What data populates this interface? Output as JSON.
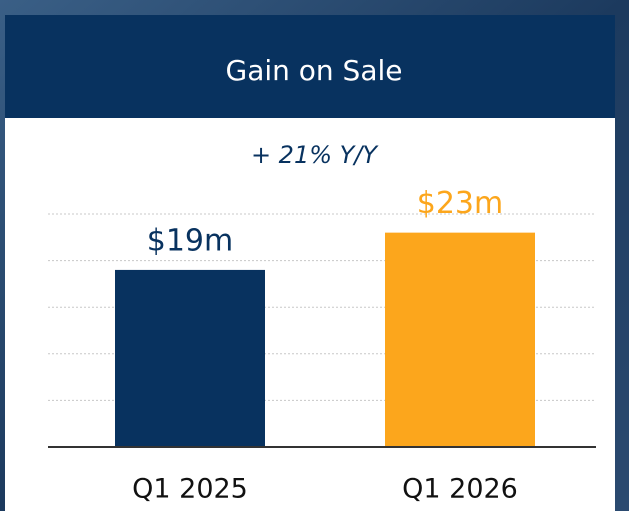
{
  "chart_data": {
    "type": "bar",
    "title": "Gain on Sale",
    "subtitle": "+ 21% Y/Y",
    "categories": [
      "Q1 2025",
      "Q1 2026"
    ],
    "values": [
      19,
      23
    ],
    "value_labels": [
      "$19m",
      "$23m"
    ],
    "colors": [
      "#08325f",
      "#fca61c"
    ],
    "ylim": [
      0,
      25
    ],
    "yticks": [
      0,
      5,
      10,
      15,
      20,
      25
    ],
    "grid": true
  }
}
